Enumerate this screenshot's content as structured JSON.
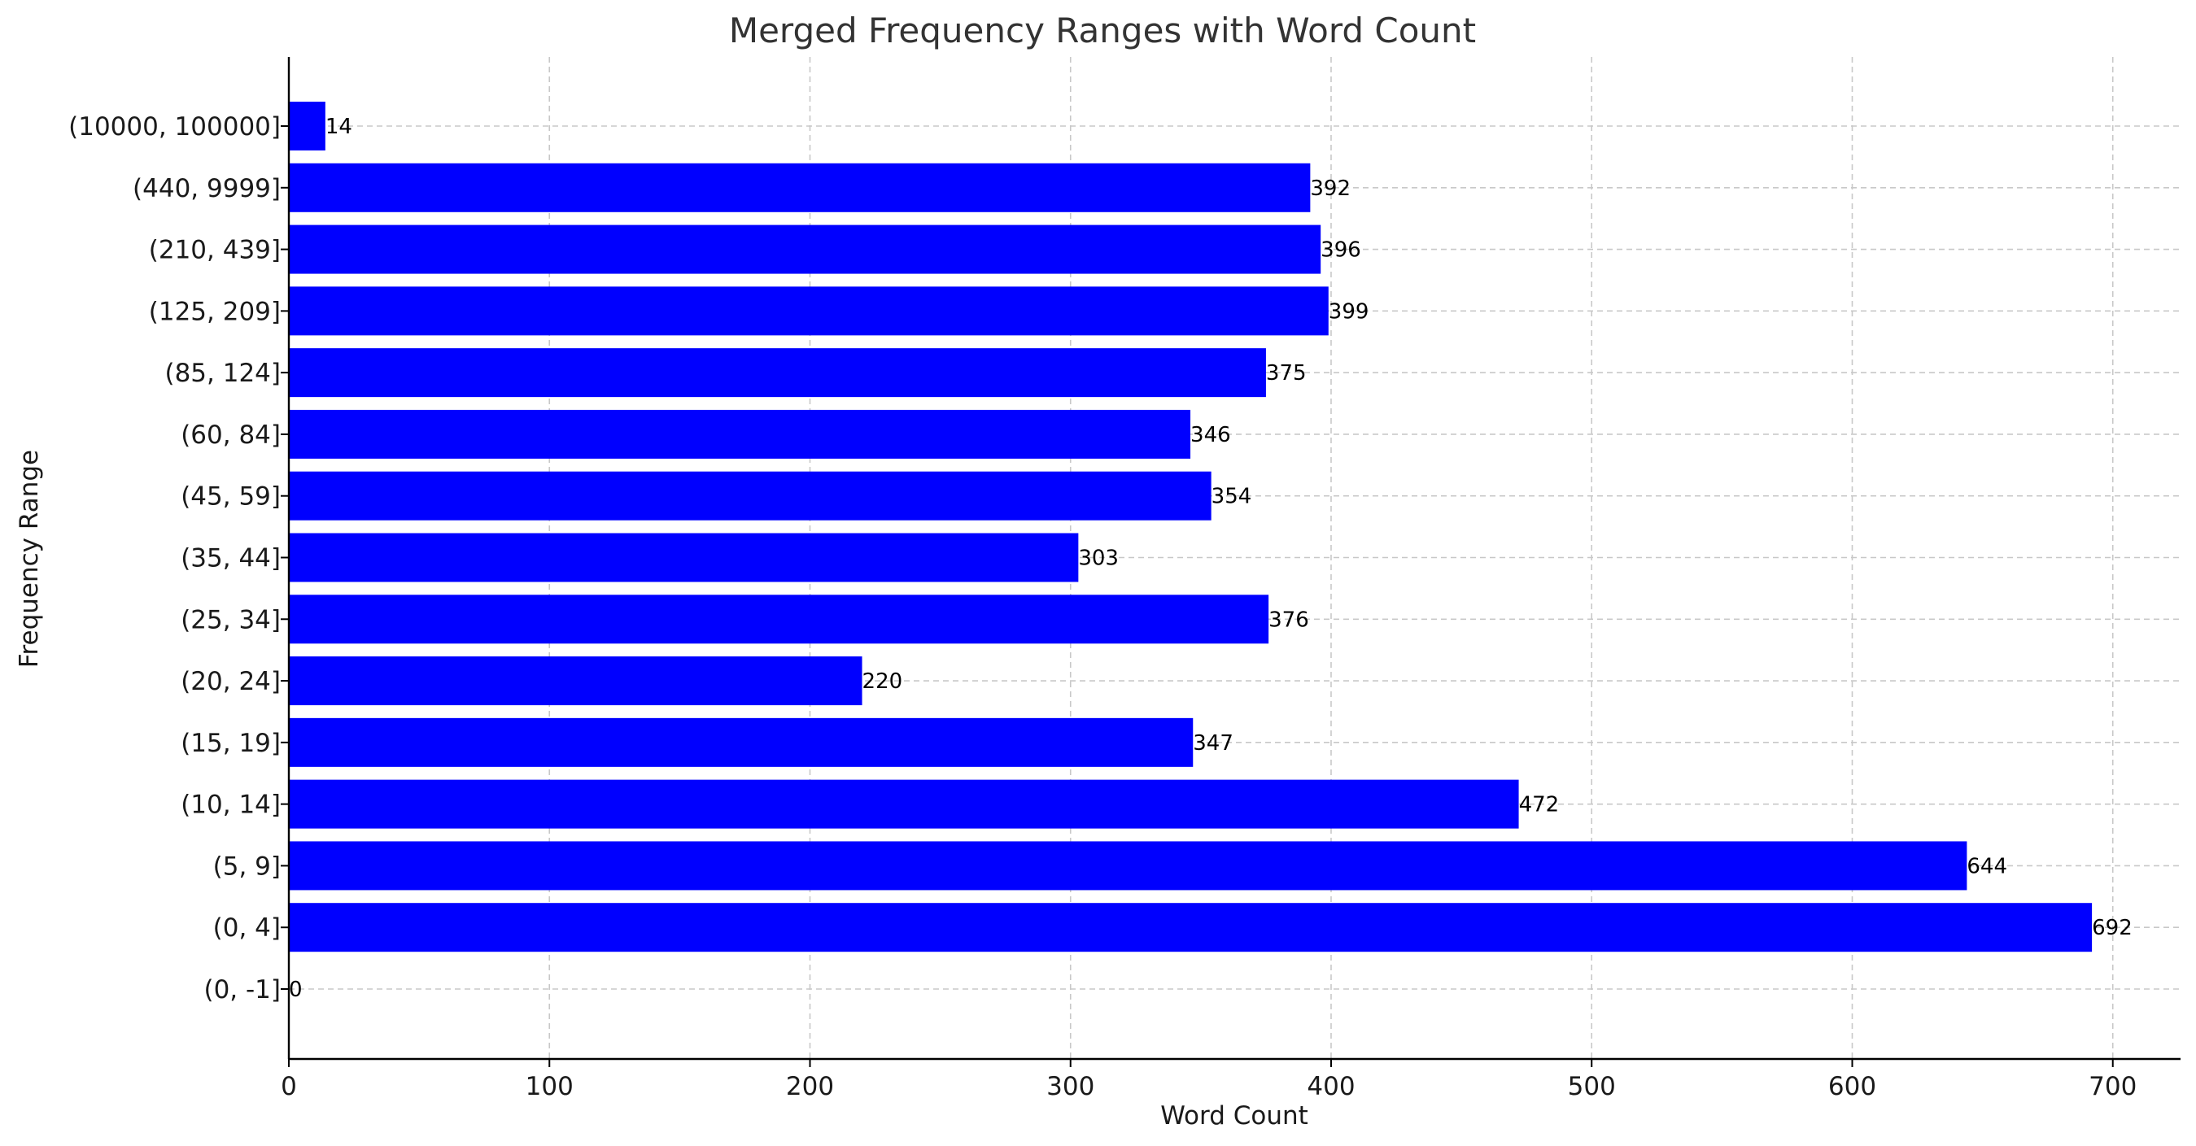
{
  "chart_data": {
    "type": "bar",
    "orientation": "horizontal",
    "title": "Merged Frequency Ranges with Word Count",
    "xlabel": "Word Count",
    "ylabel": "Frequency Range",
    "categories": [
      "(0, -1]",
      "(0, 4]",
      "(5, 9]",
      "(10, 14]",
      "(15, 19]",
      "(20, 24]",
      "(25, 34]",
      "(35, 44]",
      "(45, 59]",
      "(60, 84]",
      "(85, 124]",
      "(125, 209]",
      "(210, 439]",
      "(440, 9999]",
      "(10000, 100000]"
    ],
    "values": [
      0,
      692,
      644,
      472,
      347,
      220,
      376,
      303,
      354,
      346,
      375,
      399,
      396,
      392,
      14
    ],
    "xlim": [
      0,
      726
    ],
    "xticks": [
      0,
      100,
      200,
      300,
      400,
      500,
      600,
      700
    ],
    "grid": true,
    "bar_color": "#0000ff"
  }
}
